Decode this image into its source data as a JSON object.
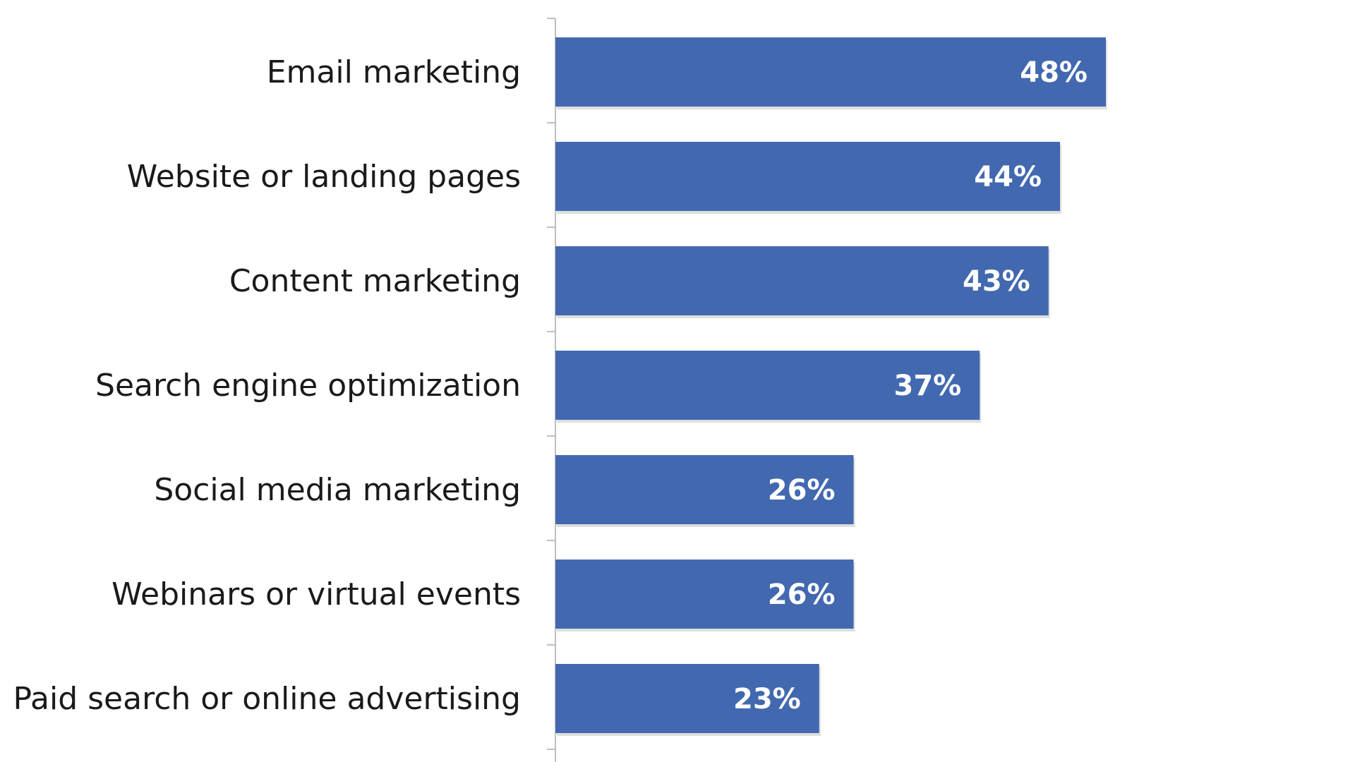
{
  "chart_data": {
    "type": "bar",
    "orientation": "horizontal",
    "categories": [
      "Email marketing",
      "Website or landing pages",
      "Content marketing",
      "Search engine optimization",
      "Social media marketing",
      "Webinars or virtual events",
      "Paid search or online advertising"
    ],
    "values": [
      48,
      44,
      43,
      37,
      26,
      26,
      23
    ],
    "value_labels": [
      "48%",
      "44%",
      "43%",
      "37%",
      "26%",
      "26%",
      "23%"
    ],
    "unit": "%",
    "xlim": [
      0,
      60
    ],
    "title": "",
    "xlabel": "",
    "ylabel": "",
    "grid": false,
    "legend": "none",
    "bar_color": "#4268B0",
    "label_color": "#ffffff",
    "text_color": "#1a1a1a",
    "axis_color": "#bfbfbf"
  }
}
